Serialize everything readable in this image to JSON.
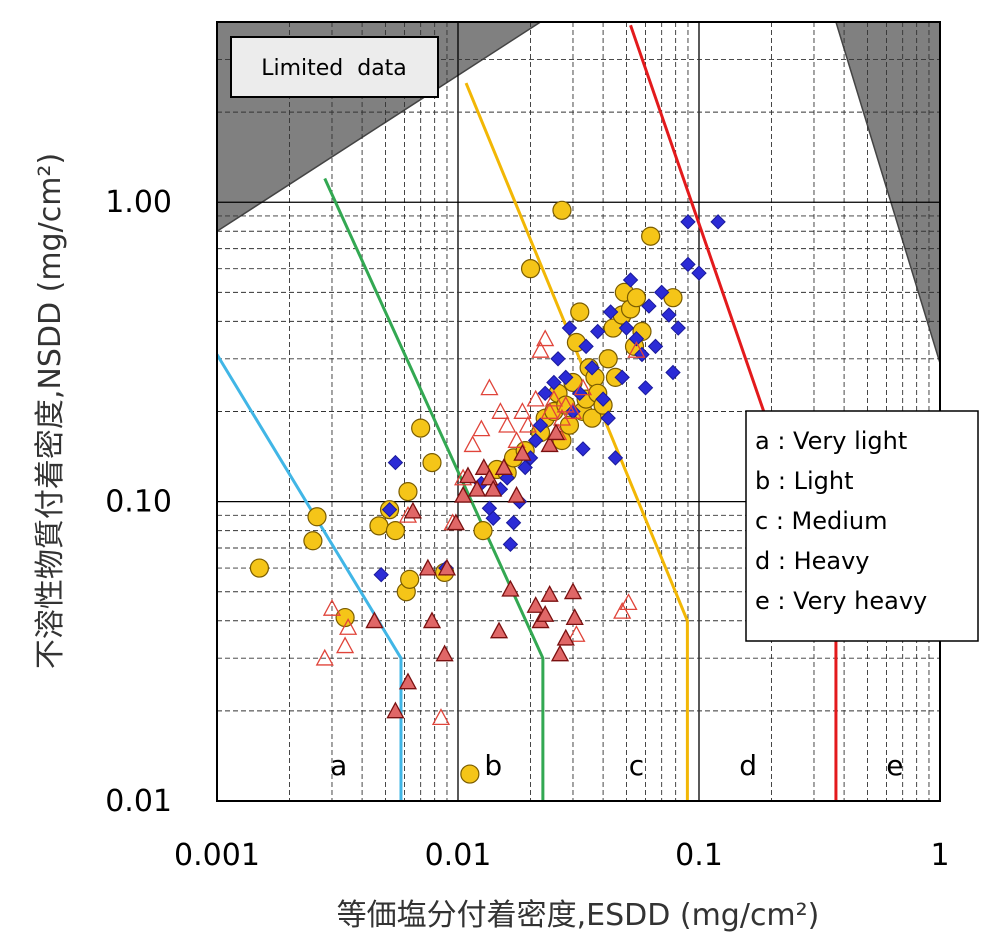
{
  "chart_data": {
    "type": "scatter",
    "xlabel": "等価塩分付着密度,ESDD (mg/cm²)",
    "ylabel": "不溶性物質付着密度,NSDD (mg/cm²)",
    "x_scale": "log",
    "y_scale": "log",
    "xlim": [
      0.001,
      1
    ],
    "ylim": [
      0.01,
      4
    ],
    "x_ticks": [
      {
        "value": 0.001,
        "label": "0.001"
      },
      {
        "value": 0.01,
        "label": "0.01"
      },
      {
        "value": 0.1,
        "label": "0.1"
      },
      {
        "value": 1,
        "label": "1"
      }
    ],
    "y_ticks": [
      {
        "value": 0.01,
        "label": "0.01"
      },
      {
        "value": 0.1,
        "label": "0.10"
      },
      {
        "value": 1,
        "label": "1.00"
      }
    ],
    "grid": true,
    "annotation": "Limited  data",
    "limited_data_regions": [
      [
        [
          0.001,
          4
        ],
        [
          0.001,
          0.8
        ],
        [
          0.022,
          4
        ]
      ],
      [
        [
          0.37,
          4
        ],
        [
          1,
          4
        ],
        [
          1,
          0.29
        ]
      ]
    ],
    "zone_lines": [
      {
        "name": "a",
        "color": "#41b6e6",
        "points": [
          [
            0.001,
            0.31
          ],
          [
            0.0058,
            0.03
          ],
          [
            0.0058,
            0.01
          ]
        ]
      },
      {
        "name": "b",
        "color": "#33a852",
        "points": [
          [
            0.0028,
            1.2
          ],
          [
            0.0225,
            0.03
          ],
          [
            0.0225,
            0.01
          ]
        ]
      },
      {
        "name": "c",
        "color": "#f2b705",
        "points": [
          [
            0.0108,
            2.5
          ],
          [
            0.0895,
            0.04
          ],
          [
            0.0895,
            0.01
          ]
        ]
      },
      {
        "name": "d",
        "color": "#e31a1c",
        "points": [
          [
            0.052,
            3.9
          ],
          [
            0.37,
            0.04
          ],
          [
            0.37,
            0.01
          ]
        ]
      }
    ],
    "zone_labels": [
      {
        "text": "a",
        "x": 0.0032,
        "y": 0.0122
      },
      {
        "text": "b",
        "x": 0.014,
        "y": 0.0122
      },
      {
        "text": "c",
        "x": 0.055,
        "y": 0.0122
      },
      {
        "text": "d",
        "x": 0.16,
        "y": 0.0122
      },
      {
        "text": "e",
        "x": 0.65,
        "y": 0.0122
      }
    ],
    "legend": {
      "position": "right",
      "entries": [
        "a : Very light",
        "b : Light",
        "c : Medium",
        "d : Heavy",
        "e : Very heavy"
      ]
    },
    "series": [
      {
        "marker": "circle",
        "fill": "#f5c518",
        "stroke": "#7a5c00",
        "points": [
          [
            0.0015,
            0.06
          ],
          [
            0.0025,
            0.074
          ],
          [
            0.0026,
            0.089
          ],
          [
            0.0034,
            0.041
          ],
          [
            0.0047,
            0.083
          ],
          [
            0.0052,
            0.094
          ],
          [
            0.0055,
            0.08
          ],
          [
            0.0061,
            0.05
          ],
          [
            0.0063,
            0.055
          ],
          [
            0.0062,
            0.108
          ],
          [
            0.007,
            0.176
          ],
          [
            0.0078,
            0.135
          ],
          [
            0.0088,
            0.058
          ],
          [
            0.0112,
            0.0123
          ],
          [
            0.0127,
            0.08
          ],
          [
            0.0145,
            0.128
          ],
          [
            0.016,
            0.125
          ],
          [
            0.017,
            0.14
          ],
          [
            0.019,
            0.148
          ],
          [
            0.02,
            0.6
          ],
          [
            0.022,
            0.17
          ],
          [
            0.023,
            0.19
          ],
          [
            0.025,
            0.2
          ],
          [
            0.026,
            0.23
          ],
          [
            0.027,
            0.94
          ],
          [
            0.027,
            0.16
          ],
          [
            0.028,
            0.21
          ],
          [
            0.029,
            0.18
          ],
          [
            0.03,
            0.25
          ],
          [
            0.031,
            0.34
          ],
          [
            0.032,
            0.43
          ],
          [
            0.033,
            0.2
          ],
          [
            0.034,
            0.22
          ],
          [
            0.035,
            0.28
          ],
          [
            0.036,
            0.19
          ],
          [
            0.037,
            0.26
          ],
          [
            0.038,
            0.23
          ],
          [
            0.04,
            0.21
          ],
          [
            0.042,
            0.3
          ],
          [
            0.044,
            0.38
          ],
          [
            0.045,
            0.26
          ],
          [
            0.048,
            0.42
          ],
          [
            0.049,
            0.5
          ],
          [
            0.052,
            0.44
          ],
          [
            0.054,
            0.33
          ],
          [
            0.055,
            0.48
          ],
          [
            0.058,
            0.37
          ],
          [
            0.063,
            0.77
          ],
          [
            0.078,
            0.48
          ]
        ]
      },
      {
        "marker": "diamond",
        "fill": "#2b2bd6",
        "stroke": "#1a1a9a",
        "points": [
          [
            0.0048,
            0.057
          ],
          [
            0.0052,
            0.094
          ],
          [
            0.0055,
            0.135
          ],
          [
            0.0089,
            0.06
          ],
          [
            0.0125,
            0.115
          ],
          [
            0.0135,
            0.095
          ],
          [
            0.014,
            0.088
          ],
          [
            0.015,
            0.11
          ],
          [
            0.016,
            0.12
          ],
          [
            0.0165,
            0.072
          ],
          [
            0.017,
            0.085
          ],
          [
            0.018,
            0.1
          ],
          [
            0.019,
            0.13
          ],
          [
            0.02,
            0.14
          ],
          [
            0.021,
            0.16
          ],
          [
            0.022,
            0.18
          ],
          [
            0.023,
            0.23
          ],
          [
            0.025,
            0.25
          ],
          [
            0.026,
            0.3
          ],
          [
            0.028,
            0.26
          ],
          [
            0.029,
            0.38
          ],
          [
            0.03,
            0.2
          ],
          [
            0.032,
            0.23
          ],
          [
            0.033,
            0.15
          ],
          [
            0.034,
            0.33
          ],
          [
            0.036,
            0.28
          ],
          [
            0.038,
            0.37
          ],
          [
            0.04,
            0.22
          ],
          [
            0.042,
            0.19
          ],
          [
            0.043,
            0.43
          ],
          [
            0.045,
            0.14
          ],
          [
            0.048,
            0.26
          ],
          [
            0.05,
            0.38
          ],
          [
            0.052,
            0.55
          ],
          [
            0.055,
            0.35
          ],
          [
            0.058,
            0.31
          ],
          [
            0.06,
            0.24
          ],
          [
            0.062,
            0.45
          ],
          [
            0.066,
            0.33
          ],
          [
            0.07,
            0.5
          ],
          [
            0.075,
            0.42
          ],
          [
            0.078,
            0.27
          ],
          [
            0.082,
            0.38
          ],
          [
            0.09,
            0.62
          ],
          [
            0.09,
            0.86
          ],
          [
            0.1,
            0.58
          ],
          [
            0.12,
            0.86
          ]
        ]
      },
      {
        "marker": "triangle-open",
        "fill": "none",
        "stroke": "#e0443a",
        "points": [
          [
            0.0028,
            0.03
          ],
          [
            0.003,
            0.044
          ],
          [
            0.0034,
            0.033
          ],
          [
            0.0035,
            0.038
          ],
          [
            0.0062,
            0.09
          ],
          [
            0.0085,
            0.019
          ],
          [
            0.0095,
            0.085
          ],
          [
            0.0105,
            0.12
          ],
          [
            0.0115,
            0.155
          ],
          [
            0.0125,
            0.175
          ],
          [
            0.0135,
            0.24
          ],
          [
            0.015,
            0.2
          ],
          [
            0.016,
            0.18
          ],
          [
            0.0175,
            0.16
          ],
          [
            0.0185,
            0.2
          ],
          [
            0.0195,
            0.18
          ],
          [
            0.021,
            0.22
          ],
          [
            0.022,
            0.32
          ],
          [
            0.023,
            0.35
          ],
          [
            0.024,
            0.2
          ],
          [
            0.025,
            0.22
          ],
          [
            0.026,
            0.17
          ],
          [
            0.027,
            0.19
          ],
          [
            0.028,
            0.21
          ],
          [
            0.03,
            0.2
          ],
          [
            0.031,
            0.036
          ],
          [
            0.033,
            0.24
          ],
          [
            0.048,
            0.043
          ],
          [
            0.051,
            0.046
          ],
          [
            0.055,
            0.32
          ]
        ]
      },
      {
        "marker": "triangle-filled",
        "fill": "#e06767",
        "stroke": "#7a1010",
        "points": [
          [
            0.0045,
            0.04
          ],
          [
            0.0055,
            0.02
          ],
          [
            0.0062,
            0.025
          ],
          [
            0.0065,
            0.093
          ],
          [
            0.0075,
            0.06
          ],
          [
            0.0078,
            0.04
          ],
          [
            0.0088,
            0.031
          ],
          [
            0.009,
            0.06
          ],
          [
            0.0098,
            0.085
          ],
          [
            0.0105,
            0.105
          ],
          [
            0.011,
            0.122
          ],
          [
            0.012,
            0.11
          ],
          [
            0.0128,
            0.13
          ],
          [
            0.0135,
            0.12
          ],
          [
            0.014,
            0.11
          ],
          [
            0.0148,
            0.037
          ],
          [
            0.0155,
            0.13
          ],
          [
            0.0165,
            0.051
          ],
          [
            0.0175,
            0.105
          ],
          [
            0.0185,
            0.145
          ],
          [
            0.021,
            0.045
          ],
          [
            0.022,
            0.04
          ],
          [
            0.023,
            0.042
          ],
          [
            0.024,
            0.049
          ],
          [
            0.024,
            0.155
          ],
          [
            0.0255,
            0.17
          ],
          [
            0.0265,
            0.031
          ],
          [
            0.028,
            0.035
          ],
          [
            0.03,
            0.05
          ],
          [
            0.0305,
            0.041
          ]
        ]
      }
    ]
  }
}
